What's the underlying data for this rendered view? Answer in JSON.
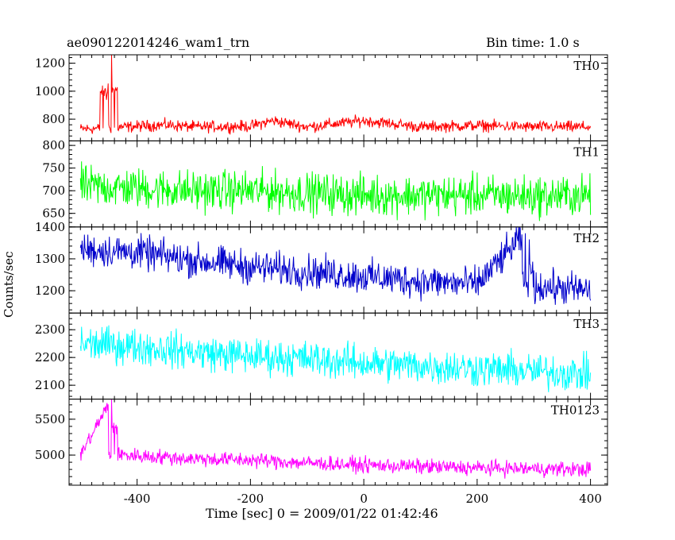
{
  "header": {
    "title": "ae090122014246_wam1_trn",
    "bin_time": "Bin time: 1.0 s"
  },
  "chart_data": {
    "type": "line",
    "xlabel": "Time [sec] 0 = 2009/01/22 01:42:46",
    "ylabel": "Counts/sec",
    "xlim": [
      -520,
      430
    ],
    "xticks": [
      -400,
      -200,
      0,
      200,
      400
    ],
    "x_range": [
      -500,
      400
    ],
    "bin_time_s": 1.0,
    "panels": [
      {
        "name": "TH0",
        "color": "#ff0000",
        "ylim": [
          645,
          1260
        ],
        "yticks": [
          800,
          1000,
          1200
        ],
        "points": [
          [
            -500,
            730
          ],
          [
            -460,
            735
          ],
          [
            -445,
            1260
          ],
          [
            -440,
            740
          ],
          [
            -350,
            760
          ],
          [
            -300,
            745
          ],
          [
            -200,
            750
          ],
          [
            -160,
            790
          ],
          [
            -100,
            745
          ],
          [
            0,
            790
          ],
          [
            100,
            745
          ],
          [
            200,
            755
          ],
          [
            300,
            745
          ],
          [
            400,
            745
          ]
        ],
        "noise": 35
      },
      {
        "name": "TH1",
        "color": "#00ff00",
        "ylim": [
          620,
          810
        ],
        "yticks": [
          650,
          700,
          750,
          800
        ],
        "points": [
          [
            -500,
            710
          ],
          [
            -400,
            705
          ],
          [
            -300,
            700
          ],
          [
            -200,
            700
          ],
          [
            -100,
            695
          ],
          [
            0,
            690
          ],
          [
            100,
            690
          ],
          [
            200,
            690
          ],
          [
            300,
            688
          ],
          [
            400,
            690
          ]
        ],
        "noise": 38
      },
      {
        "name": "TH2",
        "color": "#0000cc",
        "ylim": [
          1130,
          1400
        ],
        "yticks": [
          1200,
          1300,
          1400
        ],
        "points": [
          [
            -500,
            1330
          ],
          [
            -400,
            1320
          ],
          [
            -300,
            1295
          ],
          [
            -200,
            1275
          ],
          [
            -100,
            1260
          ],
          [
            0,
            1245
          ],
          [
            100,
            1230
          ],
          [
            200,
            1220
          ],
          [
            285,
            1380
          ],
          [
            300,
            1215
          ],
          [
            400,
            1200
          ]
        ],
        "noise": 45
      },
      {
        "name": "TH3",
        "color": "#00ffff",
        "ylim": [
          2050,
          2360
        ],
        "yticks": [
          2100,
          2200,
          2300
        ],
        "points": [
          [
            -500,
            2250
          ],
          [
            -400,
            2240
          ],
          [
            -300,
            2220
          ],
          [
            -200,
            2205
          ],
          [
            -100,
            2195
          ],
          [
            0,
            2180
          ],
          [
            100,
            2170
          ],
          [
            200,
            2160
          ],
          [
            300,
            2150
          ],
          [
            400,
            2140
          ]
        ],
        "noise": 55
      },
      {
        "name": "TH0123",
        "color": "#ff00ff",
        "ylim": [
          4580,
          5780
        ],
        "yticks": [
          5000,
          5500
        ],
        "points": [
          [
            -500,
            5000
          ],
          [
            -445,
            5780
          ],
          [
            -440,
            5010
          ],
          [
            -400,
            4990
          ],
          [
            -300,
            4950
          ],
          [
            -200,
            4930
          ],
          [
            -100,
            4890
          ],
          [
            0,
            4860
          ],
          [
            100,
            4840
          ],
          [
            200,
            4820
          ],
          [
            300,
            4810
          ],
          [
            400,
            4800
          ]
        ],
        "noise": 90
      }
    ]
  }
}
